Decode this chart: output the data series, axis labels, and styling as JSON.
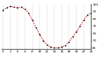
{
  "title": "",
  "x_values": [
    0,
    1,
    2,
    3,
    4,
    5,
    6,
    7,
    8,
    9,
    10,
    11,
    12,
    13,
    14,
    15,
    16,
    17,
    18,
    19,
    20,
    21,
    22,
    23,
    24
  ],
  "y_values": [
    92,
    95,
    97,
    96,
    95,
    96,
    93,
    88,
    78,
    68,
    58,
    50,
    44,
    41,
    40,
    40,
    41,
    43,
    48,
    55,
    62,
    70,
    78,
    85,
    88
  ],
  "line_color": "#cc0000",
  "marker_color": "#000000",
  "background_color": "#ffffff",
  "grid_color": "#999999",
  "ylim": [
    38,
    100
  ],
  "xlim": [
    -0.5,
    24
  ],
  "ytick_values": [
    40,
    50,
    60,
    70,
    80,
    90,
    100
  ],
  "tick_fontsize": 3.2,
  "xtick_positions": [
    0,
    2,
    4,
    6,
    8,
    10,
    12,
    14,
    16,
    18,
    20,
    22,
    24
  ]
}
